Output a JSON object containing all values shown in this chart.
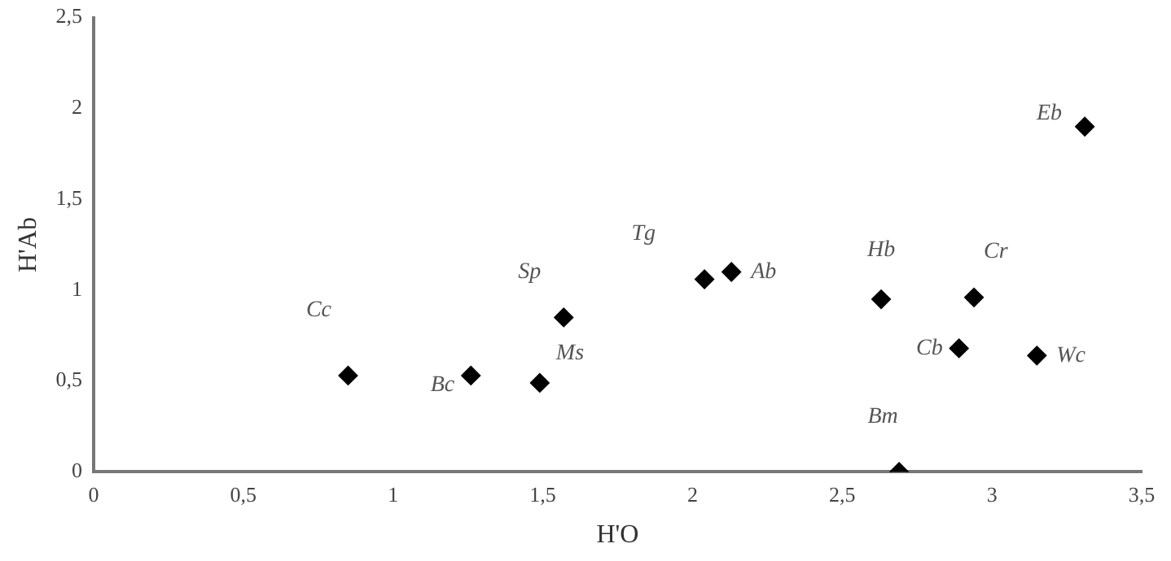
{
  "chart_data": {
    "type": "scatter",
    "xlabel": "H'O",
    "ylabel": "H'Ab",
    "series": [
      {
        "color": "#000000",
        "x": [
          0.85,
          1.26,
          1.49,
          1.57,
          2.04,
          2.13,
          2.63,
          2.94,
          2.89,
          3.15,
          2.69,
          3.31
        ],
        "values": [
          0.53,
          0.53,
          0.49,
          0.85,
          1.06,
          1.1,
          0.95,
          0.96,
          0.68,
          0.64,
          0,
          1.9
        ]
      }
    ],
    "annotations": [
      {
        "text": "Cc",
        "x": 0.85,
        "y": 0.53
      },
      {
        "text": "Bc",
        "x": 1.26,
        "y": 0.53
      },
      {
        "text": "Ms",
        "x": 1.49,
        "y": 0.49
      },
      {
        "text": "Sp",
        "x": 1.57,
        "y": 0.85
      },
      {
        "text": "Tg",
        "x": 2.04,
        "y": 1.06
      },
      {
        "text": "Ab",
        "x": 2.13,
        "y": 1.1
      },
      {
        "text": "Hb",
        "x": 2.63,
        "y": 0.95
      },
      {
        "text": "Cr",
        "x": 2.94,
        "y": 0.96
      },
      {
        "text": "Cb",
        "x": 2.89,
        "y": 0.68
      },
      {
        "text": "Wc",
        "x": 3.15,
        "y": 0.64
      },
      {
        "text": "Bm",
        "x": 2.69,
        "y": 0
      },
      {
        "text": "Eb",
        "x": 3.31,
        "y": 1.9
      }
    ],
    "xlim": [
      0,
      3.5
    ],
    "xticks": [
      0,
      {
        "value": 0.5,
        "label": "0,5"
      },
      1,
      {
        "value": 1.5,
        "label": "1,5"
      },
      2,
      {
        "value": 2.5,
        "label": "2,5"
      },
      3,
      {
        "value": 3.5,
        "label": "3,5"
      }
    ],
    "ylim": [
      0,
      2.5
    ],
    "yticks": [
      0,
      {
        "value": 0.5,
        "label": "0,5"
      },
      1,
      {
        "value": 1.5,
        "label": "1,5"
      },
      2,
      {
        "value": 2.5,
        "label": "2,5"
      }
    ],
    "grid": false,
    "legend": false,
    "marker": "diamond"
  }
}
